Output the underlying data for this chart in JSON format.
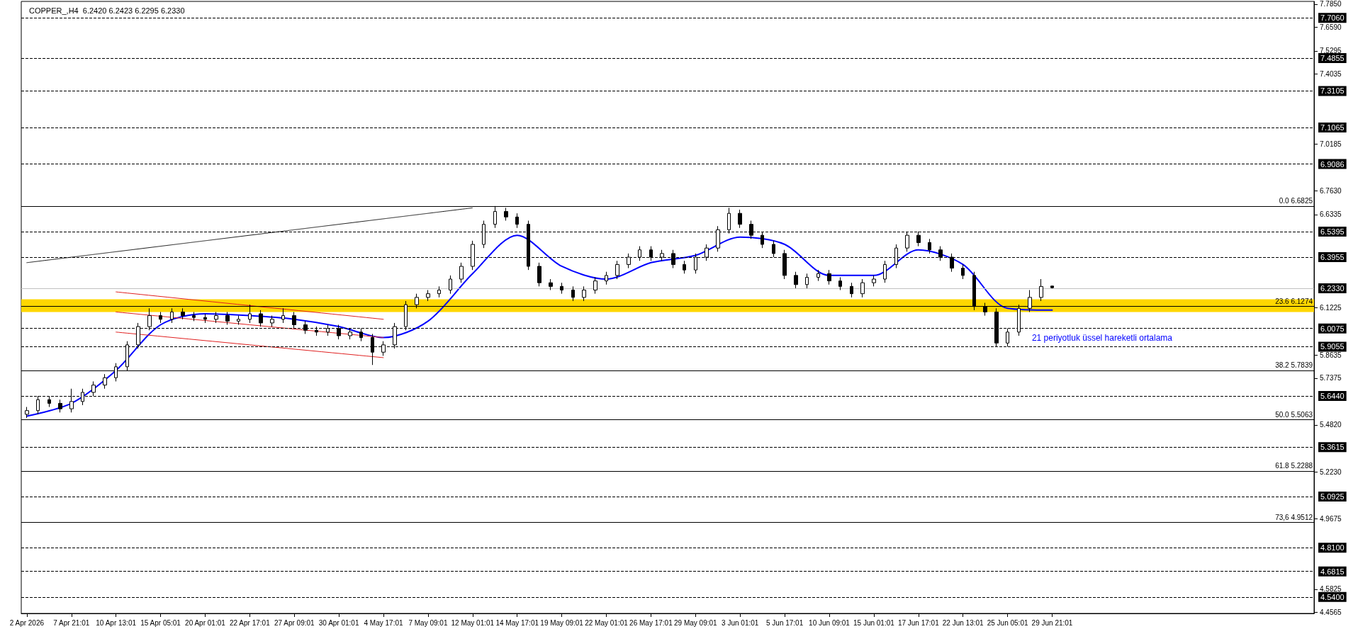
{
  "chart_data": {
    "type": "candlestick",
    "title": "COPPER_,H4  6.2420 6.2423 6.2295 6.2330",
    "grid": false,
    "marker": "none",
    "categories": [
      "2 Apr 2026",
      null,
      null,
      null,
      "7 Apr 21:01",
      null,
      null,
      null,
      "10 Apr 13:01",
      null,
      null,
      null,
      "15 Apr 05:01",
      null,
      null,
      null,
      "20 Apr 01:01",
      null,
      null,
      null,
      "22 Apr 17:01",
      null,
      null,
      null,
      "27 Apr 09:01",
      null,
      null,
      null,
      "30 Apr 01:01",
      null,
      null,
      null,
      "4 May 17:01",
      null,
      null,
      null,
      "7 May 09:01",
      null,
      null,
      null,
      "12 May 01:01",
      null,
      null,
      null,
      "14 May 17:01",
      null,
      null,
      null,
      "19 May 09:01",
      null,
      null,
      null,
      "22 May 01:01",
      null,
      null,
      null,
      "26 May 17:01",
      null,
      null,
      null,
      "29 May 09:01",
      null,
      null,
      null,
      "3 Jun 01:01",
      null,
      null,
      null,
      "5 Jun 17:01",
      null,
      null,
      null,
      "10 Jun 09:01",
      null,
      null,
      null,
      "15 Jun 01:01",
      null,
      null,
      null,
      "17 Jun 17:01",
      null,
      null,
      null,
      "22 Jun 13:01",
      null,
      null,
      null,
      "25 Jun 05:01",
      null,
      null,
      null,
      "29 Jun 21:01",
      null,
      null,
      null,
      null,
      null,
      null,
      null,
      null,
      null,
      null,
      null,
      null,
      null,
      null,
      null,
      null,
      null,
      null,
      null,
      null,
      null,
      null,
      null
    ],
    "ylim": [
      4.45,
      7.8
    ],
    "yticks": [
      {
        "value": 7.785,
        "label": "7.7850"
      },
      {
        "value": 7.659,
        "label": "7.6590"
      },
      {
        "value": 7.5295,
        "label": "7.5295"
      },
      {
        "value": 7.4035,
        "label": "7.4035"
      },
      {
        "value": 7.0185,
        "label": "7.0185"
      },
      {
        "value": 6.763,
        "label": "6.7630"
      },
      {
        "value": 6.6335,
        "label": "6.6335"
      },
      {
        "value": 6.1225,
        "label": "6.1225"
      },
      {
        "value": 5.8635,
        "label": "5.8635"
      },
      {
        "value": 5.7375,
        "label": "5.7375"
      },
      {
        "value": 5.482,
        "label": "5.4820"
      },
      {
        "value": 5.223,
        "label": "5.2230"
      },
      {
        "value": 4.9675,
        "label": "4.9675"
      },
      {
        "value": 4.5825,
        "label": "4.5825"
      },
      {
        "value": 4.4565,
        "label": "4.4565"
      }
    ],
    "ohlc": [
      [
        5.54,
        5.58,
        5.52,
        5.56
      ],
      [
        5.56,
        5.64,
        5.54,
        5.62
      ],
      [
        5.62,
        5.64,
        5.58,
        5.6
      ],
      [
        5.6,
        5.62,
        5.55,
        5.57
      ],
      [
        5.57,
        5.68,
        5.55,
        5.61
      ],
      [
        5.61,
        5.68,
        5.59,
        5.66
      ],
      [
        5.66,
        5.72,
        5.64,
        5.7
      ],
      [
        5.7,
        5.76,
        5.68,
        5.74
      ],
      [
        5.74,
        5.82,
        5.72,
        5.8
      ],
      [
        5.8,
        5.94,
        5.78,
        5.92
      ],
      [
        5.92,
        6.04,
        5.9,
        6.02
      ],
      [
        6.02,
        6.12,
        6,
        6.08
      ],
      [
        6.08,
        6.1,
        6.04,
        6.06
      ],
      [
        6.06,
        6.12,
        6.04,
        6.1
      ],
      [
        6.1,
        6.12,
        6.06,
        6.08
      ],
      [
        6.08,
        6.1,
        6.05,
        6.07
      ],
      [
        6.07,
        6.09,
        6.04,
        6.06
      ],
      [
        6.06,
        6.1,
        6.04,
        6.08
      ],
      [
        6.08,
        6.1,
        6.03,
        6.05
      ],
      [
        6.05,
        6.08,
        6.03,
        6.06
      ],
      [
        6.06,
        6.14,
        6.04,
        6.09
      ],
      [
        6.09,
        6.11,
        6.02,
        6.04
      ],
      [
        6.04,
        6.08,
        6.02,
        6.06
      ],
      [
        6.06,
        6.12,
        6.04,
        6.08
      ],
      [
        6.08,
        6.1,
        6.01,
        6.03
      ],
      [
        6.03,
        6.05,
        5.98,
        6
      ],
      [
        6,
        6.02,
        5.97,
        5.99
      ],
      [
        5.99,
        6.03,
        5.97,
        6.01
      ],
      [
        6.01,
        6.03,
        5.95,
        5.97
      ],
      [
        5.97,
        6.01,
        5.95,
        5.99
      ],
      [
        5.99,
        6.01,
        5.94,
        5.96
      ],
      [
        5.96,
        5.98,
        5.81,
        5.88
      ],
      [
        5.88,
        5.94,
        5.86,
        5.92
      ],
      [
        5.92,
        6.04,
        5.9,
        6.02
      ],
      [
        6.02,
        6.16,
        6,
        6.14
      ],
      [
        6.14,
        6.2,
        6.12,
        6.18
      ],
      [
        6.18,
        6.22,
        6.16,
        6.2
      ],
      [
        6.2,
        6.24,
        6.18,
        6.22
      ],
      [
        6.22,
        6.3,
        6.2,
        6.28
      ],
      [
        6.28,
        6.37,
        6.26,
        6.35
      ],
      [
        6.35,
        6.49,
        6.33,
        6.47
      ],
      [
        6.47,
        6.6,
        6.45,
        6.58
      ],
      [
        6.58,
        6.68,
        6.56,
        6.65
      ],
      [
        6.65,
        6.67,
        6.6,
        6.62
      ],
      [
        6.62,
        6.64,
        6.56,
        6.58
      ],
      [
        6.58,
        6.6,
        6.33,
        6.35
      ],
      [
        6.35,
        6.37,
        6.24,
        6.26
      ],
      [
        6.26,
        6.28,
        6.22,
        6.24
      ],
      [
        6.24,
        6.26,
        6.2,
        6.22
      ],
      [
        6.22,
        6.24,
        6.16,
        6.18
      ],
      [
        6.18,
        6.24,
        6.16,
        6.22
      ],
      [
        6.22,
        6.29,
        6.2,
        6.27
      ],
      [
        6.27,
        6.32,
        6.25,
        6.3
      ],
      [
        6.3,
        6.38,
        6.28,
        6.36
      ],
      [
        6.36,
        6.42,
        6.34,
        6.4
      ],
      [
        6.4,
        6.46,
        6.38,
        6.44
      ],
      [
        6.44,
        6.46,
        6.38,
        6.4
      ],
      [
        6.4,
        6.44,
        6.38,
        6.42
      ],
      [
        6.42,
        6.44,
        6.34,
        6.36
      ],
      [
        6.36,
        6.38,
        6.31,
        6.33
      ],
      [
        6.33,
        6.42,
        6.31,
        6.4
      ],
      [
        6.4,
        6.47,
        6.38,
        6.45
      ],
      [
        6.45,
        6.57,
        6.43,
        6.55
      ],
      [
        6.55,
        6.67,
        6.53,
        6.64
      ],
      [
        6.64,
        6.66,
        6.56,
        6.58
      ],
      [
        6.58,
        6.6,
        6.5,
        6.52
      ],
      [
        6.52,
        6.54,
        6.45,
        6.47
      ],
      [
        6.47,
        6.49,
        6.4,
        6.42
      ],
      [
        6.42,
        6.44,
        6.28,
        6.3
      ],
      [
        6.3,
        6.32,
        6.23,
        6.25
      ],
      [
        6.25,
        6.31,
        6.23,
        6.29
      ],
      [
        6.29,
        6.33,
        6.27,
        6.31
      ],
      [
        6.31,
        6.33,
        6.25,
        6.27
      ],
      [
        6.27,
        6.29,
        6.22,
        6.24
      ],
      [
        6.24,
        6.26,
        6.18,
        6.2
      ],
      [
        6.2,
        6.28,
        6.18,
        6.26
      ],
      [
        6.26,
        6.3,
        6.24,
        6.28
      ],
      [
        6.28,
        6.38,
        6.26,
        6.36
      ],
      [
        6.36,
        6.47,
        6.34,
        6.45
      ],
      [
        6.45,
        6.54,
        6.43,
        6.52
      ],
      [
        6.52,
        6.54,
        6.46,
        6.48
      ],
      [
        6.48,
        6.5,
        6.42,
        6.44
      ],
      [
        6.44,
        6.46,
        6.38,
        6.4
      ],
      [
        6.4,
        6.42,
        6.32,
        6.34
      ],
      [
        6.34,
        6.36,
        6.28,
        6.3
      ],
      [
        6.3,
        6.32,
        6.11,
        6.13
      ],
      [
        6.13,
        6.15,
        6.08,
        6.1
      ],
      [
        6.1,
        6.12,
        5.91,
        5.93
      ],
      [
        5.93,
        6.01,
        5.91,
        5.99
      ],
      [
        5.99,
        6.14,
        5.97,
        6.12
      ],
      [
        6.12,
        6.22,
        6.1,
        6.18
      ],
      [
        6.18,
        6.28,
        6.16,
        6.24
      ],
      [
        6.242,
        6.2423,
        6.2295,
        6.233
      ],
      null,
      null,
      null,
      null,
      null,
      null,
      null,
      null,
      null,
      null,
      null,
      null,
      null,
      null,
      null,
      null,
      null,
      null,
      null,
      null,
      null,
      null,
      null
    ],
    "series": [
      {
        "type": "line",
        "color": "#0000ff",
        "x": [
          "2 Apr 2026",
          "7 Apr 21:01",
          "10 Apr 13:01",
          "15 Apr 05:01",
          "20 Apr 01:01",
          "22 Apr 17:01",
          "27 Apr 09:01",
          "30 Apr 01:01",
          "4 May 17:01",
          "7 May 09:01",
          "12 May 01:01",
          "14 May 17:01",
          "19 May 09:01",
          "22 May 01:01",
          "26 May 17:01",
          "29 May 09:01",
          "3 Jun 01:01",
          "5 Jun 17:01",
          "10 Jun 09:01",
          "15 Jun 01:01",
          "17 Jun 17:01",
          "22 Jun 13:01",
          "25 Jun 05:01",
          "29 Jun 21:01"
        ],
        "values": [
          5.53,
          5.6,
          5.78,
          6.03,
          6.09,
          6.08,
          6.06,
          6.02,
          5.96,
          6.05,
          6.31,
          6.52,
          6.35,
          6.28,
          6.37,
          6.41,
          6.51,
          6.47,
          6.3,
          6.3,
          6.44,
          6.36,
          6.12,
          6.11
        ]
      },
      {
        "type": "line",
        "color": "#e02020",
        "line_style": "solid",
        "x": [
          "10 Apr 13:01",
          "4 May 17:01"
        ],
        "values": [
          6.21,
          6.06
        ]
      },
      {
        "type": "line",
        "color": "#e02020",
        "line_style": "solid",
        "x": [
          "10 Apr 13:01",
          "4 May 17:01"
        ],
        "values": [
          6.1,
          5.96
        ]
      },
      {
        "type": "line",
        "color": "#e02020",
        "line_style": "solid",
        "x": [
          "10 Apr 13:01",
          "4 May 17:01"
        ],
        "values": [
          5.99,
          5.85
        ]
      },
      {
        "type": "line",
        "color": "#000000",
        "line_style": "dotted",
        "x": [
          "2 Apr 2026",
          "12 May 01:01"
        ],
        "values": [
          6.37,
          6.67
        ]
      }
    ],
    "ref_lines": [
      {
        "axis": "y",
        "value": 7.706,
        "label": "7.7060",
        "color": "#000000",
        "line_style": "dashed"
      },
      {
        "axis": "y",
        "value": 7.4855,
        "label": "7.4855",
        "color": "#000000",
        "line_style": "dashed"
      },
      {
        "axis": "y",
        "value": 7.3105,
        "label": "7.3105",
        "color": "#000000",
        "line_style": "dashed"
      },
      {
        "axis": "y",
        "value": 7.1065,
        "label": "7.1065",
        "color": "#000000",
        "line_style": "dashed"
      },
      {
        "axis": "y",
        "value": 6.9086,
        "label": "6.9086",
        "color": "#000000",
        "line_style": "dashed"
      },
      {
        "axis": "y",
        "value": 6.5395,
        "label": "6.5395",
        "color": "#000000",
        "line_style": "dashed"
      },
      {
        "axis": "y",
        "value": 6.3955,
        "label": "6.3955",
        "color": "#000000",
        "line_style": "dashed"
      },
      {
        "axis": "y",
        "value": 6.0075,
        "label": "6.0075",
        "color": "#000000",
        "line_style": "dashed"
      },
      {
        "axis": "y",
        "value": 5.9055,
        "label": "5.9055",
        "color": "#000000",
        "line_style": "dashed"
      },
      {
        "axis": "y",
        "value": 5.644,
        "label": "5.6440",
        "color": "#000000",
        "line_style": "dashed"
      },
      {
        "axis": "y",
        "value": 5.3615,
        "label": "5.3615",
        "color": "#000000",
        "line_style": "dashed"
      },
      {
        "axis": "y",
        "value": 5.0925,
        "label": "5.0925",
        "color": "#000000",
        "line_style": "dashed"
      },
      {
        "axis": "y",
        "value": 4.81,
        "label": "4.8100",
        "color": "#000000",
        "line_style": "dashed"
      },
      {
        "axis": "y",
        "value": 4.6815,
        "label": "4.6815",
        "color": "#000000",
        "line_style": "dashed"
      },
      {
        "axis": "y",
        "value": 4.54,
        "label": "4.5400",
        "color": "#000000",
        "line_style": "dashed"
      },
      {
        "axis": "y",
        "value": 6.233,
        "label": "6.2330",
        "color": "#c0c0c0",
        "line_style": "solid"
      },
      {
        "axis": "y",
        "value": 6.6825,
        "label": "0.0 6.6825",
        "color": "#000000",
        "line_style": "solid"
      },
      {
        "axis": "y",
        "value": 6.1274,
        "label": "23.6 6.1274",
        "color": "#000000",
        "line_style": "solid"
      },
      {
        "axis": "y",
        "value": 5.7839,
        "label": "38.2 5.7839",
        "color": "#000000",
        "line_style": "solid"
      },
      {
        "axis": "y",
        "value": 5.5063,
        "label": "50.0 5.5063",
        "color": "#000000",
        "line_style": "solid"
      },
      {
        "axis": "y",
        "value": 5.2288,
        "label": "61.8 5.2288",
        "color": "#000000",
        "line_style": "solid"
      },
      {
        "axis": "y",
        "value": 4.9512,
        "label": "73,6 4.9512",
        "color": "#000000",
        "line_style": "solid"
      }
    ],
    "bands": [
      {
        "axis": "y",
        "from": 6.1,
        "to": 6.17,
        "color": "#ffd700"
      }
    ],
    "annotations": [
      "21 periyotluk üssel hareketli ortalama"
    ]
  }
}
